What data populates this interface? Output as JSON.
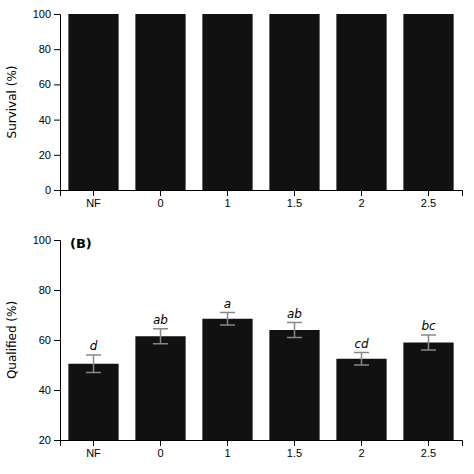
{
  "chart_data": [
    {
      "type": "bar",
      "categories": [
        "NF",
        "0",
        "1",
        "1.5",
        "2",
        "2.5"
      ],
      "values": [
        100,
        100,
        100,
        100,
        100,
        100
      ],
      "ylabel": "Survival (%)",
      "ylim": [
        0,
        100
      ],
      "yticks": [
        0,
        20,
        40,
        60,
        80,
        100
      ],
      "color": "#111111"
    },
    {
      "type": "bar",
      "categories": [
        "NF",
        "0",
        "1",
        "1.5",
        "2",
        "2.5"
      ],
      "values": [
        50.5,
        61.5,
        68.5,
        64.0,
        52.5,
        59.0
      ],
      "errors": [
        3.5,
        3.0,
        2.5,
        3.0,
        2.5,
        3.0
      ],
      "annotations": [
        "d",
        "ab",
        "a",
        "ab",
        "cd",
        "bc"
      ],
      "ylabel": "Qualified (%)",
      "ylim": [
        20,
        100
      ],
      "yticks": [
        20,
        40,
        60,
        80,
        100
      ],
      "panel_label": "(B)",
      "color": "#111111"
    }
  ]
}
